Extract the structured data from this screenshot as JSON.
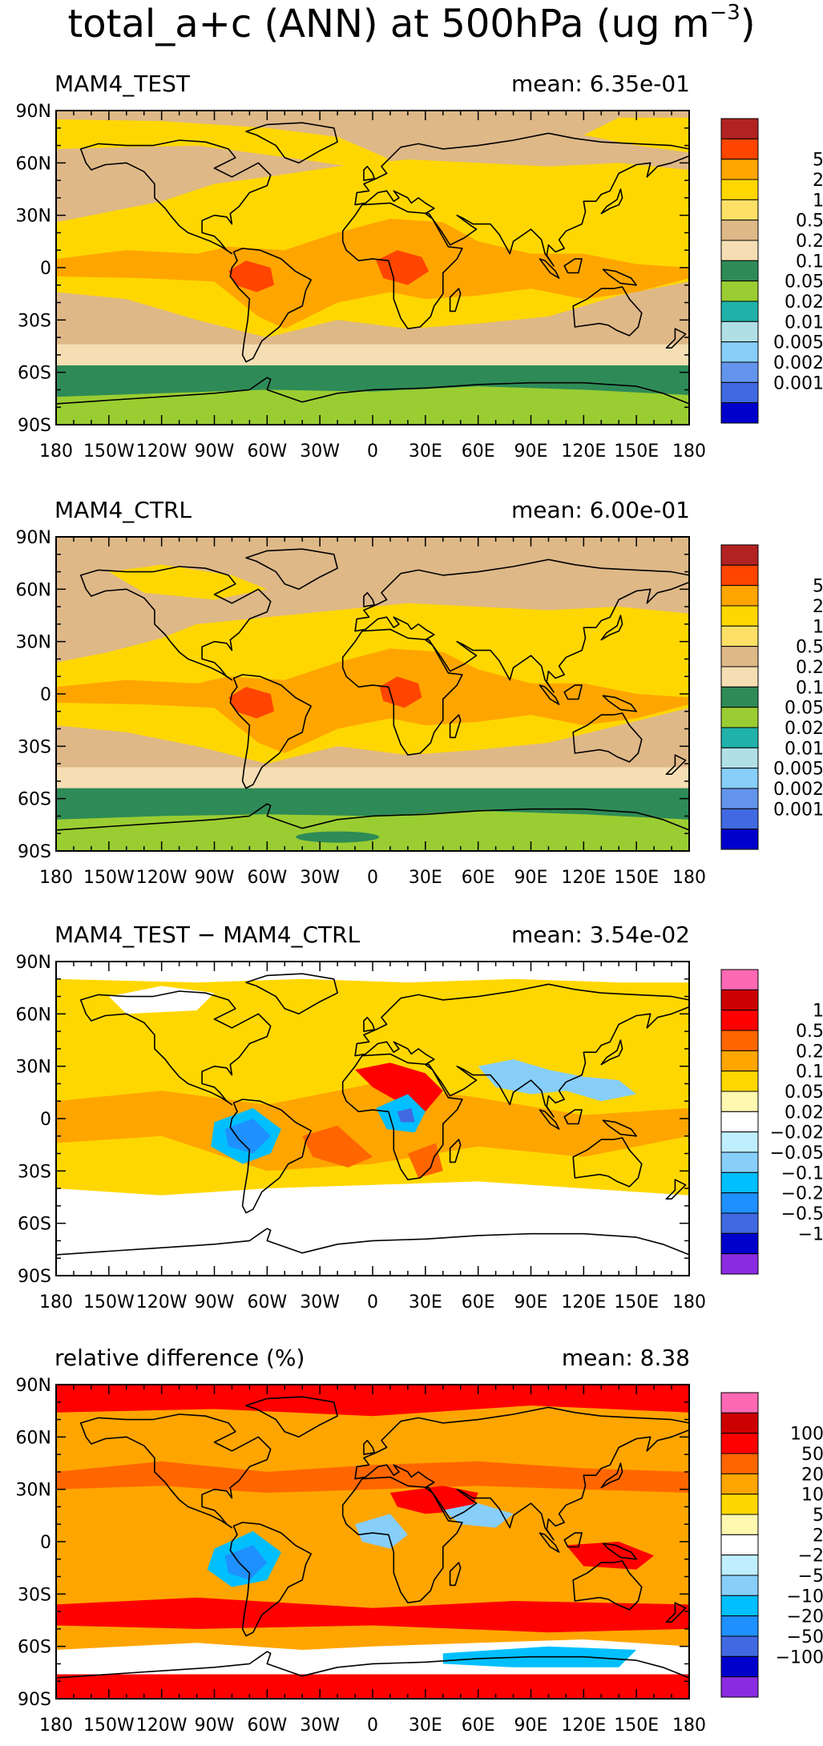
{
  "figure": {
    "title_main": "total_a+c (ANN) at 500hPa (ug m",
    "title_exponent": "−3",
    "title_close": ")",
    "lat_labels": [
      "90N",
      "60N",
      "30N",
      "0",
      "30S",
      "60S",
      "90S"
    ],
    "lon_labels": [
      "180",
      "150W",
      "120W",
      "90W",
      "60W",
      "30W",
      "0",
      "30E",
      "60E",
      "90E",
      "120E",
      "150E",
      "180"
    ]
  },
  "panels": [
    {
      "id": "test",
      "title": "MAM4_TEST",
      "mean": "mean: 6.35e-01",
      "colorbar": {
        "colors": [
          "#b22222",
          "#ff4500",
          "#ffa500",
          "#ffd700",
          "#ffe066",
          "#deb887",
          "#f5deb3",
          "#2e8b57",
          "#9acd32",
          "#20b2aa",
          "#b0e0e6",
          "#87cefa",
          "#6495ed",
          "#4169e1",
          "#0000cd"
        ],
        "labels": [
          "5",
          "2",
          "1",
          "0.5",
          "0.2",
          "0.1",
          "0.05",
          "0.02",
          "0.01",
          "0.005",
          "0.002",
          "0.001"
        ]
      }
    },
    {
      "id": "ctrl",
      "title": "MAM4_CTRL",
      "mean": "mean: 6.00e-01",
      "colorbar": {
        "colors": [
          "#b22222",
          "#ff4500",
          "#ffa500",
          "#ffd700",
          "#ffe066",
          "#deb887",
          "#f5deb3",
          "#2e8b57",
          "#9acd32",
          "#20b2aa",
          "#b0e0e6",
          "#87cefa",
          "#6495ed",
          "#4169e1",
          "#0000cd"
        ],
        "labels": [
          "5",
          "2",
          "1",
          "0.5",
          "0.2",
          "0.1",
          "0.05",
          "0.02",
          "0.01",
          "0.005",
          "0.002",
          "0.001"
        ]
      }
    },
    {
      "id": "diff",
      "title": "MAM4_TEST − MAM4_CTRL",
      "mean": "mean: 3.54e-02",
      "colorbar": {
        "colors": [
          "#ff69b4",
          "#cc0000",
          "#ff0000",
          "#ff6600",
          "#ffa500",
          "#ffd700",
          "#fff8b0",
          "#ffffff",
          "#bfefff",
          "#87cefa",
          "#00bfff",
          "#1e90ff",
          "#4169e1",
          "#0000cd",
          "#8a2be2"
        ],
        "labels": [
          "1",
          "0.5",
          "0.2",
          "0.1",
          "0.05",
          "0.02",
          "−0.02",
          "−0.05",
          "−0.1",
          "−0.2",
          "−0.5",
          "−1"
        ]
      }
    },
    {
      "id": "rel",
      "title": "relative difference (%)",
      "mean": "mean:  8.38",
      "colorbar": {
        "colors": [
          "#ff69b4",
          "#cc0000",
          "#ff0000",
          "#ff6600",
          "#ffa500",
          "#ffd700",
          "#fff8b0",
          "#ffffff",
          "#bfefff",
          "#87cefa",
          "#00bfff",
          "#1e90ff",
          "#4169e1",
          "#0000cd",
          "#8a2be2"
        ],
        "labels": [
          "100",
          "50",
          "20",
          "10",
          "5",
          "2",
          "−2",
          "−5",
          "−10",
          "−20",
          "−50",
          "−100"
        ]
      }
    }
  ]
}
